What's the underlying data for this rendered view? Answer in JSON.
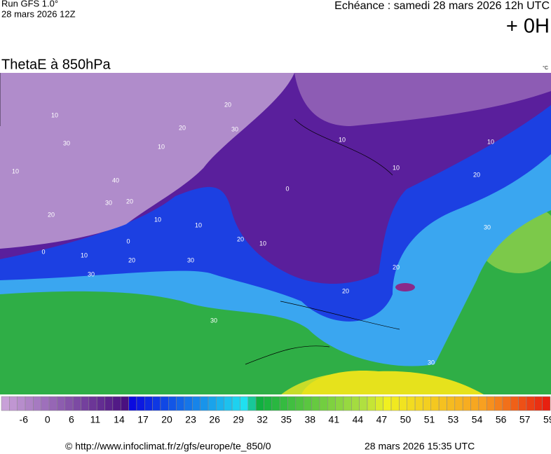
{
  "header": {
    "run": "Run GFS 1.0°",
    "run_time": "28 mars 2026 12Z",
    "echeance": "Echéance : samedi 28 mars 2026 12h UTC",
    "offset": "+ 0H"
  },
  "title": "ThetaE à 850hPa",
  "unit": "°C",
  "contour_labels": [
    "10",
    "10",
    "10",
    "20",
    "30",
    "0",
    "10",
    "20",
    "10",
    "30",
    "20",
    "10",
    "30",
    "0",
    "0",
    "30",
    "20",
    "20",
    "20",
    "30",
    "30",
    "20",
    "30",
    "20",
    "10",
    "30",
    "10",
    "10",
    "40",
    "10",
    "20"
  ],
  "colorbar": {
    "labels": [
      -6,
      0,
      6,
      11,
      14,
      17,
      20,
      23,
      26,
      29,
      32,
      35,
      38,
      41,
      44,
      47,
      50,
      51,
      53,
      54,
      56,
      57,
      59
    ]
  },
  "footer": {
    "source": "© http://www.infoclimat.fr/z/gfs/europe/te_850/0",
    "generated": "28 mars 2026 15:35 UTC"
  }
}
